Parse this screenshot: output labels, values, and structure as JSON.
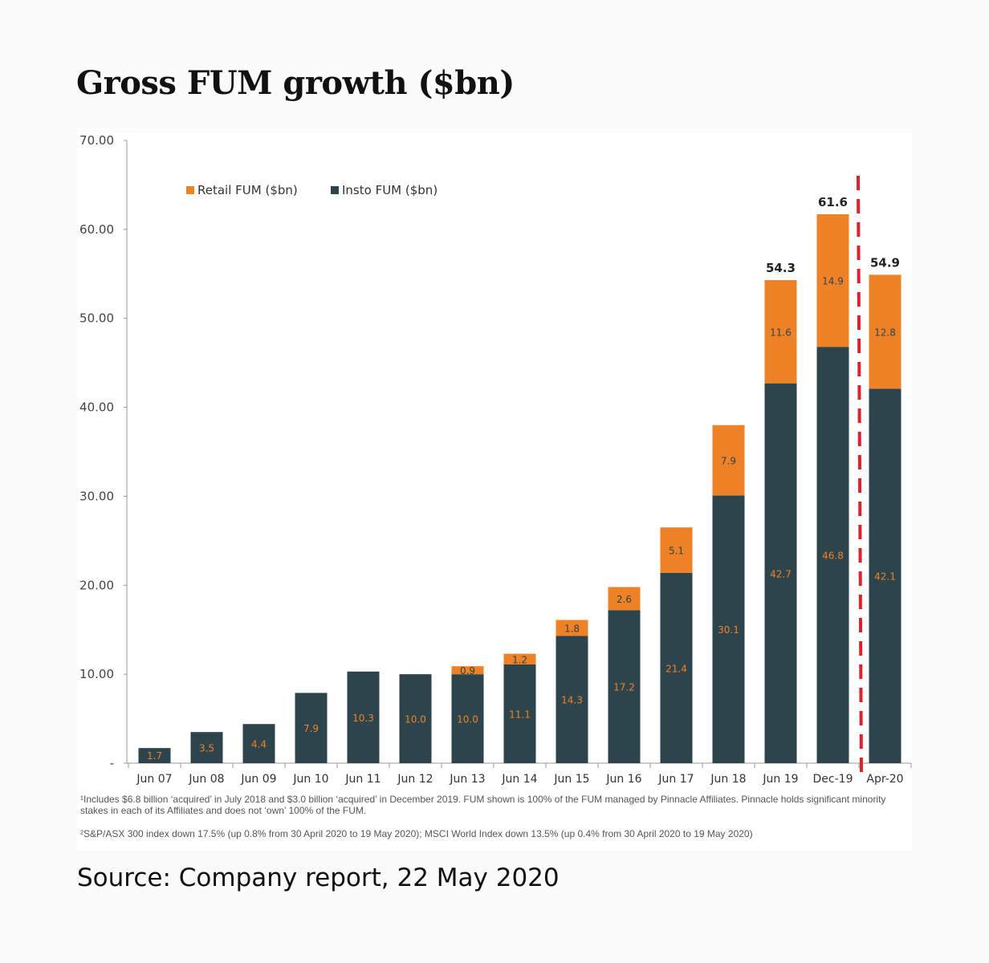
{
  "title": "Gross FUM growth ($bn)",
  "source": "Source: Company report, 22 May 2020",
  "footnotes": [
    "¹Includes $6.8 billion ‘acquired’ in July 2018 and $3.0 billion ‘acquired’ in December 2019. FUM shown is 100% of the FUM managed by Pinnacle Affiliates. Pinnacle holds significant minority stakes in each of its Affiliates and does not ‘own’ 100% of the FUM.",
    "²S&P/ASX 300 index down 17.5% (up 0.8% from 30 April 2020 to 19 May 2020); MSCI World Index down 13.5% (up 0.4% from 30 April 2020 to 19 May 2020)"
  ],
  "colors": {
    "retail": "#ef8126",
    "insto": "#2e444c",
    "divider": "#e0202a",
    "insto_label": "#ef8126",
    "retail_label": "#2e444c"
  },
  "chart_data": {
    "type": "bar",
    "stacked": true,
    "categories": [
      "Jun 07",
      "Jun 08",
      "Jun 09",
      "Jun 10",
      "Jun 11",
      "Jun 12",
      "Jun 13",
      "Jun 14",
      "Jun 15",
      "Jun 16",
      "Jun 17",
      "Jun 18",
      "Jun 19",
      "Dec-19",
      "Apr-20"
    ],
    "series": [
      {
        "name": "Insto FUM ($bn)",
        "color": "#2e444c",
        "values": [
          1.7,
          3.5,
          4.4,
          7.9,
          10.3,
          10.0,
          10.0,
          11.1,
          14.3,
          17.2,
          21.4,
          30.1,
          42.7,
          46.8,
          42.1
        ],
        "labels": [
          "1.7",
          "3.5",
          "4.4",
          "7.9",
          "10.3",
          "10.0",
          "10.0",
          "11.1",
          "14.3",
          "17.2",
          "21.4",
          "30.1",
          "42.7",
          "46.8",
          "42.1"
        ]
      },
      {
        "name": "Retail FUM ($bn)",
        "color": "#ef8126",
        "values": [
          null,
          null,
          null,
          null,
          null,
          null,
          0.9,
          1.2,
          1.8,
          2.6,
          5.1,
          7.9,
          11.6,
          14.9,
          12.8
        ],
        "labels": [
          "",
          "",
          "",
          "",
          "",
          "",
          "0.9",
          "1.2",
          "1.8",
          "2.6",
          "5.1",
          "7.9",
          "11.6",
          "14.9",
          "12.8"
        ]
      }
    ],
    "totals": [
      {
        "category": "Jun 19",
        "label": "54.3"
      },
      {
        "category": "Dec-19",
        "label": "61.6"
      },
      {
        "category": "Apr-20",
        "label": "54.9"
      }
    ],
    "legend": [
      {
        "name": "Retail FUM ($bn)",
        "color": "#ef8126"
      },
      {
        "name": "Insto FUM ($bn)",
        "color": "#2e444c"
      }
    ],
    "legend_position": "top-left",
    "yticks": [
      "-",
      "10.00",
      "20.00",
      "30.00",
      "40.00",
      "50.00",
      "60.00",
      "70.00"
    ],
    "ylim": [
      0,
      70
    ],
    "divider_between": [
      "Dec-19",
      "Apr-20"
    ],
    "grid": false
  }
}
